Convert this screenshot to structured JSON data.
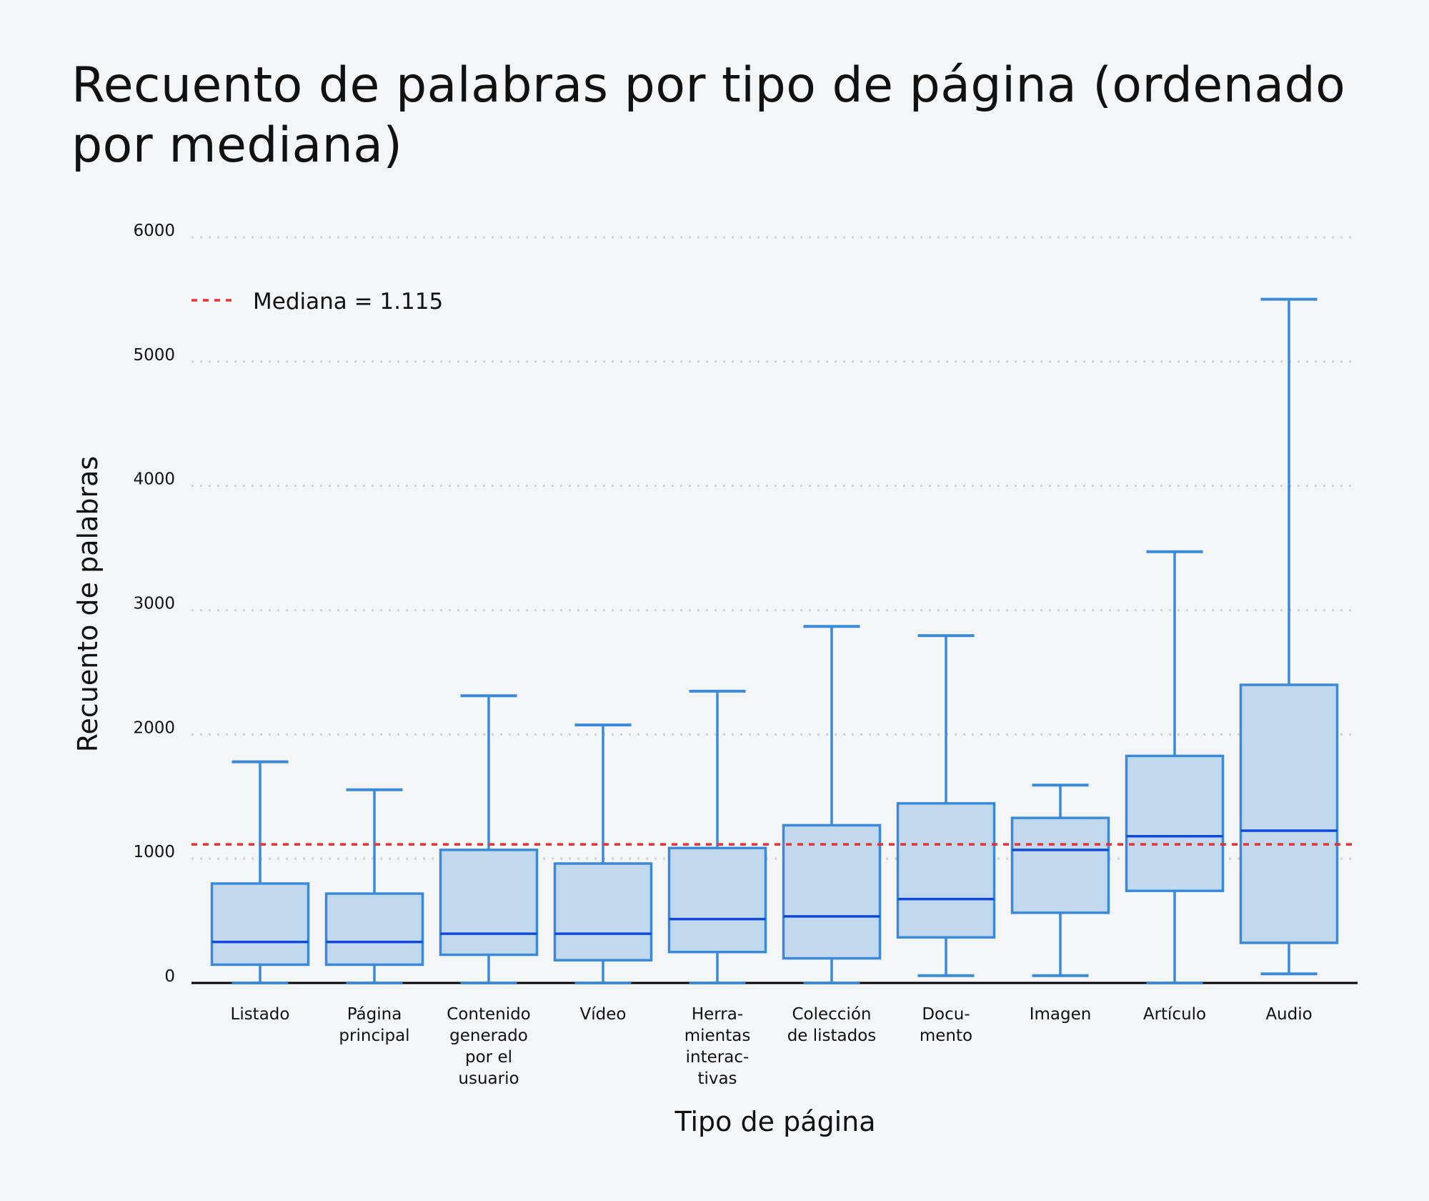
{
  "chart_data": {
    "type": "box",
    "title": "Recuento de palabras por tipo de página (ordenado por mediana)",
    "xlabel": "Tipo de página",
    "ylabel": "Recuento de palabras",
    "ylim": [
      0,
      6000
    ],
    "yticks": [
      0,
      1000,
      2000,
      3000,
      4000,
      5000,
      6000
    ],
    "grid": "horizontal dotted",
    "legend_placement": "top-left",
    "reference_line": {
      "value": 1115,
      "label": "Mediana = 1.115",
      "color": "#e83030"
    },
    "colors": {
      "box_fill": "#c2d8ec",
      "box_edge": "#3a8ad8",
      "median": "#1048d8"
    },
    "categories": [
      {
        "label": [
          "Listado"
        ],
        "whislo": 0,
        "q1": 147,
        "med": 330,
        "q3": 800,
        "whishi": 1780
      },
      {
        "label": [
          "Página",
          "principal"
        ],
        "whislo": 0,
        "q1": 147,
        "med": 330,
        "q3": 719,
        "whishi": 1555
      },
      {
        "label": [
          "Contenido",
          "generado",
          "por el",
          "usuario"
        ],
        "whislo": 0,
        "q1": 227,
        "med": 396,
        "q3": 1071,
        "whishi": 2311
      },
      {
        "label": [
          "Vídeo"
        ],
        "whislo": 0,
        "q1": 183,
        "med": 396,
        "q3": 961,
        "whishi": 2076
      },
      {
        "label": [
          "Herra-",
          "mientas",
          "interac-",
          "tivas"
        ],
        "whislo": 0,
        "q1": 249,
        "med": 514,
        "q3": 1086,
        "whishi": 2348
      },
      {
        "label": [
          "Colección",
          "de listados"
        ],
        "whislo": 0,
        "q1": 198,
        "med": 536,
        "q3": 1269,
        "whishi": 2869
      },
      {
        "label": [
          "Docu-",
          "mento"
        ],
        "whislo": 59,
        "q1": 367,
        "med": 675,
        "q3": 1445,
        "whishi": 2795
      },
      {
        "label": [
          "Imagen"
        ],
        "whislo": 59,
        "q1": 565,
        "med": 1071,
        "q3": 1328,
        "whishi": 1592
      },
      {
        "label": [
          "Artículo"
        ],
        "whislo": 0,
        "q1": 741,
        "med": 1181,
        "q3": 1827,
        "whishi": 3470
      },
      {
        "label": [
          "Audio"
        ],
        "whislo": 73,
        "q1": 323,
        "med": 1225,
        "q3": 2399,
        "whishi": 5502
      }
    ]
  }
}
